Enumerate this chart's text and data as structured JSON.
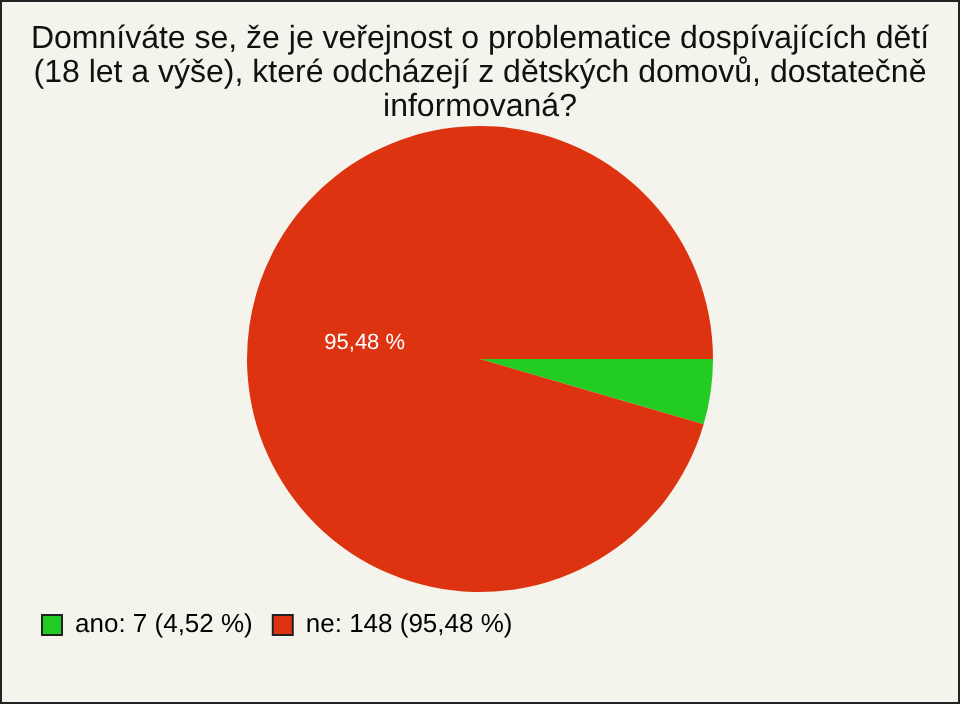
{
  "chart_data": {
    "type": "pie",
    "title": "Domníváte se, že je veřejnost o problematice dospívajících dětí (18 let a výše), které odcházejí z dětských domovů, dostatečně informovaná?",
    "categories": [
      "ano: 7 (4,52 %)",
      "ne: 148 (95,48 %)"
    ],
    "values": [
      4.52,
      95.48
    ],
    "colors": [
      "#22cc22",
      "#dd3311"
    ],
    "value_labels": [
      null,
      "95,48 %"
    ],
    "legend": "bottom left"
  }
}
